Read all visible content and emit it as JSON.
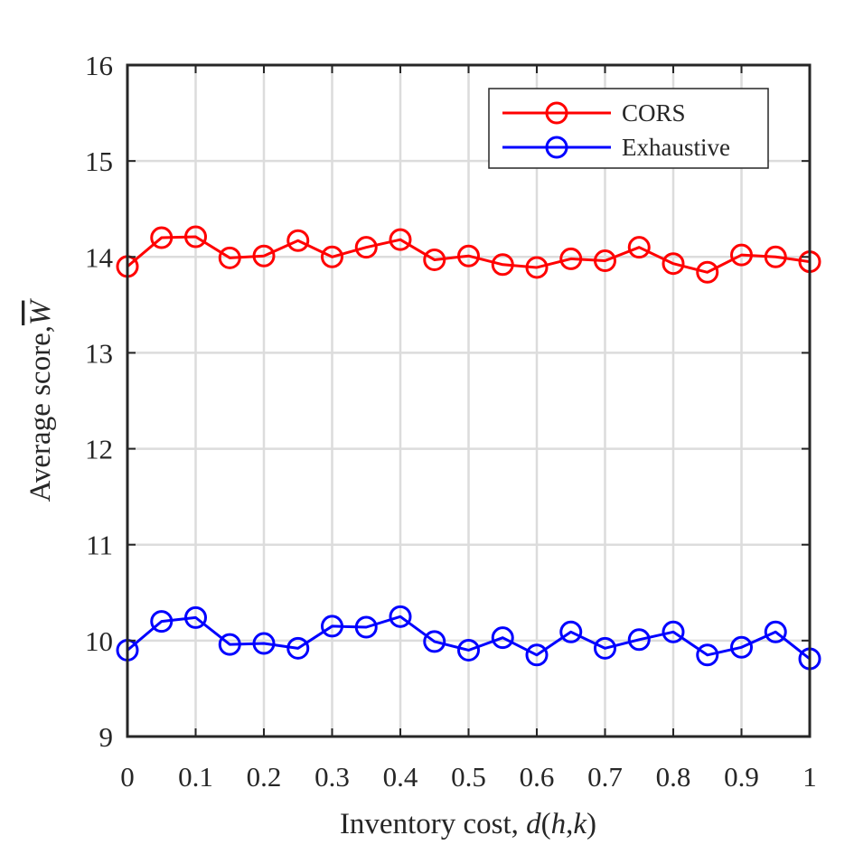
{
  "chart_data": {
    "type": "line",
    "title": "",
    "xlabel": "Inventory cost, d(h,k)",
    "ylabel": "Average score, W̄",
    "xlim": [
      0,
      1
    ],
    "ylim": [
      9,
      16
    ],
    "x_ticks": [
      0,
      0.1,
      0.2,
      0.3,
      0.4,
      0.5,
      0.6,
      0.7,
      0.8,
      0.9,
      1
    ],
    "x_tick_labels": [
      "0",
      "0.1",
      "0.2",
      "0.3",
      "0.4",
      "0.5",
      "0.6",
      "0.7",
      "0.8",
      "0.9",
      "1"
    ],
    "y_ticks": [
      9,
      10,
      11,
      12,
      13,
      14,
      15,
      16
    ],
    "y_tick_labels": [
      "9",
      "10",
      "11",
      "12",
      "13",
      "14",
      "15",
      "16"
    ],
    "grid": true,
    "legend_position": "top-right",
    "x": [
      0,
      0.05,
      0.1,
      0.15,
      0.2,
      0.25,
      0.3,
      0.35,
      0.4,
      0.45,
      0.5,
      0.55,
      0.6,
      0.65,
      0.7,
      0.75,
      0.8,
      0.85,
      0.9,
      0.95,
      1
    ],
    "series": [
      {
        "name": "CORS",
        "color": "#ff0000",
        "marker": "circle",
        "values": [
          13.9,
          14.2,
          14.21,
          13.99,
          14.01,
          14.17,
          14.0,
          14.1,
          14.18,
          13.97,
          14.01,
          13.92,
          13.89,
          13.98,
          13.96,
          14.1,
          13.93,
          13.84,
          14.02,
          14.0,
          13.95
        ]
      },
      {
        "name": "Exhaustive",
        "color": "#0000ff",
        "marker": "circle",
        "values": [
          9.9,
          10.2,
          10.24,
          9.96,
          9.97,
          9.92,
          10.15,
          10.14,
          10.25,
          9.99,
          9.9,
          10.03,
          9.85,
          10.09,
          9.92,
          10.01,
          10.09,
          9.85,
          9.93,
          10.09,
          9.81
        ]
      }
    ]
  }
}
